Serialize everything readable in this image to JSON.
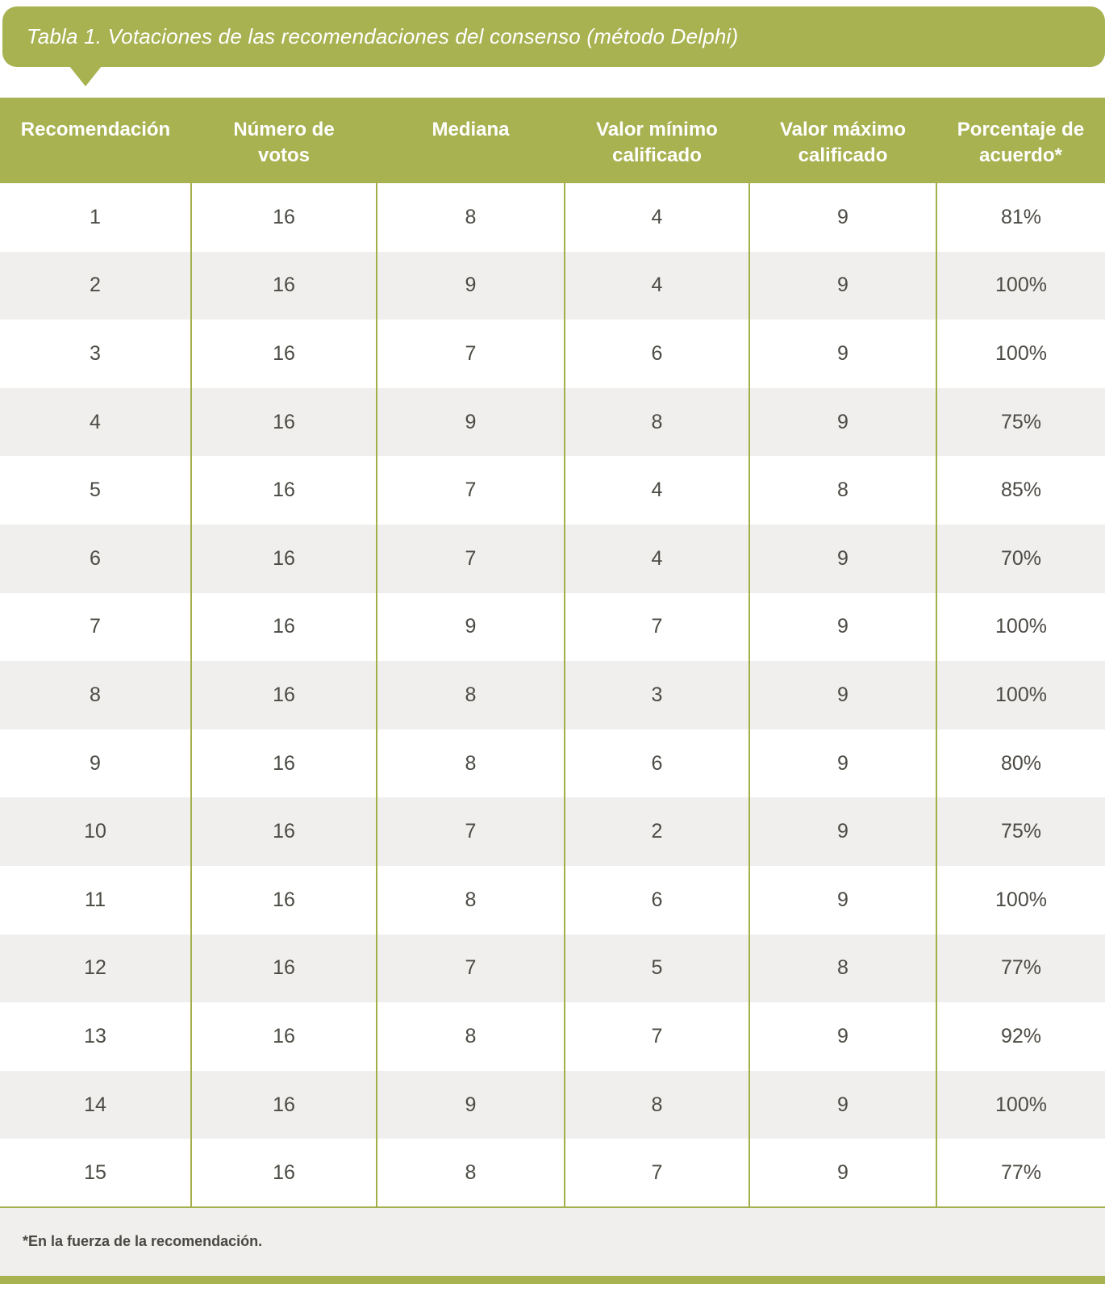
{
  "title": "Tabla 1. Votaciones de las recomendaciones del consenso (método Delphi)",
  "footnote": "*En la fuerza de la recomendación.",
  "colors": {
    "olive_accent": "#a8b251",
    "column_rule": "#a3af48",
    "row_stripe": "#f0efed",
    "header_text": "#ffffff",
    "body_text": "#4c4a44"
  },
  "table": {
    "columns": [
      {
        "label": "Recomendación"
      },
      {
        "label": "Número de\nvotos"
      },
      {
        "label": "Mediana"
      },
      {
        "label": "Valor mínimo\ncalificado"
      },
      {
        "label": "Valor máximo\ncalificado"
      },
      {
        "label": "Porcentaje de\nacuerdo*"
      }
    ],
    "rows": [
      [
        "1",
        "16",
        "8",
        "4",
        "9",
        "81%"
      ],
      [
        "2",
        "16",
        "9",
        "4",
        "9",
        "100%"
      ],
      [
        "3",
        "16",
        "7",
        "6",
        "9",
        "100%"
      ],
      [
        "4",
        "16",
        "9",
        "8",
        "9",
        "75%"
      ],
      [
        "5",
        "16",
        "7",
        "4",
        "8",
        "85%"
      ],
      [
        "6",
        "16",
        "7",
        "4",
        "9",
        "70%"
      ],
      [
        "7",
        "16",
        "9",
        "7",
        "9",
        "100%"
      ],
      [
        "8",
        "16",
        "8",
        "3",
        "9",
        "100%"
      ],
      [
        "9",
        "16",
        "8",
        "6",
        "9",
        "80%"
      ],
      [
        "10",
        "16",
        "7",
        "2",
        "9",
        "75%"
      ],
      [
        "11",
        "16",
        "8",
        "6",
        "9",
        "100%"
      ],
      [
        "12",
        "16",
        "7",
        "5",
        "8",
        "77%"
      ],
      [
        "13",
        "16",
        "8",
        "7",
        "9",
        "92%"
      ],
      [
        "14",
        "16",
        "9",
        "8",
        "9",
        "100%"
      ],
      [
        "15",
        "16",
        "8",
        "7",
        "9",
        "77%"
      ]
    ]
  }
}
